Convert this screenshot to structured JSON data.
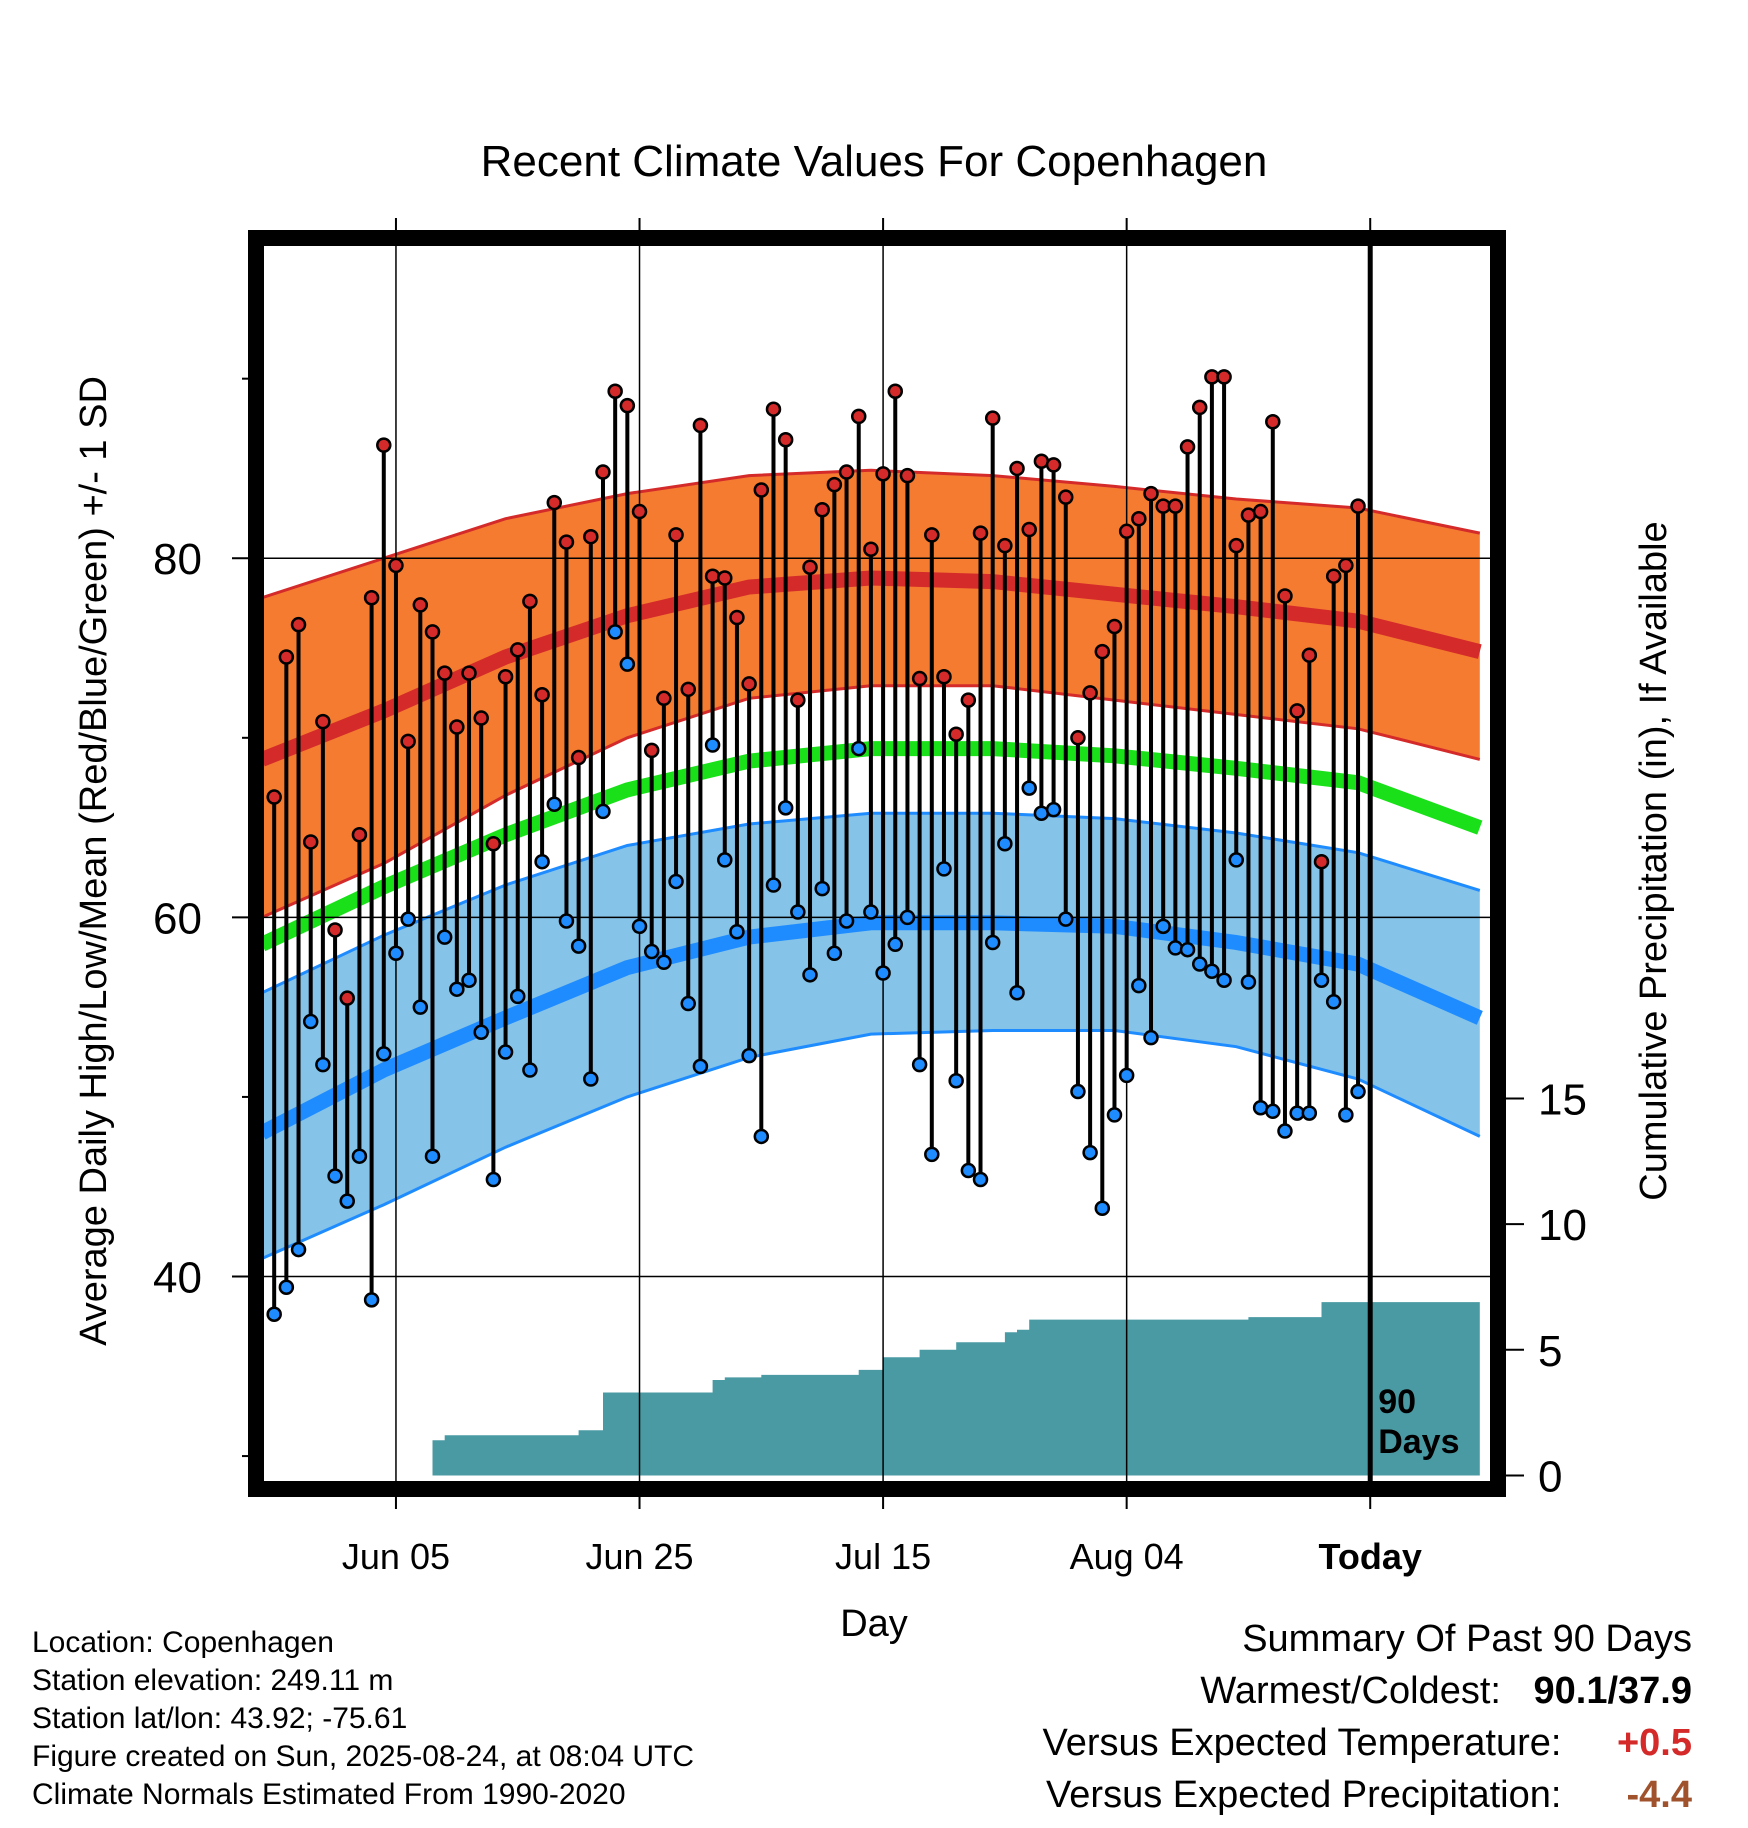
{
  "chart_data": {
    "type": "line",
    "title": "Recent Climate Values For Copenhagen",
    "xlabel": "Day",
    "ylabel": "Average Daily High/Low/Mean (Red/Blue/Green) +/- 1 SD",
    "y2label": "Cumulative Precipitation (in), If Available",
    "x_ticks": [
      "Jun 05",
      "Jun 25",
      "Jul 15",
      "Aug 04",
      "Today"
    ],
    "x_tick_days": [
      10,
      30,
      50,
      70,
      90
    ],
    "xlim": [
      -1,
      100
    ],
    "ylim": [
      28.5,
      97.5
    ],
    "y_ticks": [
      40,
      60,
      80
    ],
    "y2lim": [
      -0.3,
      49
    ],
    "y2_ticks": [
      0,
      5,
      10,
      15
    ],
    "grid": true,
    "today_marker_label": "90\nDays",
    "today_day": 90,
    "colors": {
      "high_band": "#f47b30",
      "high_line": "#d42a2a",
      "low_band": "#85c3e8",
      "low_line": "#1e8cff",
      "mean_line": "#19e019",
      "precip": "#4a9aa3",
      "high_point": "#d42a2a",
      "low_point": "#1e8cff"
    },
    "normals": {
      "x": [
        -1,
        9,
        19,
        29,
        39,
        49,
        59,
        69,
        79,
        89,
        99
      ],
      "high_mean": [
        68.8,
        71.5,
        74.5,
        76.8,
        78.4,
        78.9,
        78.7,
        78.0,
        77.3,
        76.5,
        74.8
      ],
      "high_upper": [
        77.8,
        80.0,
        82.2,
        83.6,
        84.6,
        84.9,
        84.6,
        84.0,
        83.3,
        82.8,
        81.4
      ],
      "high_lower": [
        60.0,
        63.0,
        66.8,
        70.0,
        72.2,
        72.9,
        72.9,
        72.1,
        71.3,
        70.5,
        68.8
      ],
      "mean": [
        58.5,
        61.7,
        64.6,
        67.1,
        68.7,
        69.4,
        69.4,
        69.0,
        68.3,
        67.5,
        65.0
      ],
      "low_mean": [
        48.0,
        51.5,
        54.4,
        57.2,
        58.9,
        59.7,
        59.7,
        59.5,
        58.6,
        57.4,
        54.4
      ],
      "low_upper": [
        55.8,
        59.0,
        61.8,
        64.0,
        65.2,
        65.8,
        65.8,
        65.5,
        64.7,
        63.6,
        61.5
      ],
      "low_lower": [
        41.0,
        44.0,
        47.2,
        50.0,
        52.2,
        53.5,
        53.7,
        53.7,
        52.8,
        51.0,
        47.8
      ]
    },
    "observations": {
      "high": [
        66.7,
        74.5,
        76.3,
        64.2,
        70.9,
        59.3,
        55.5,
        64.6,
        77.8,
        86.3,
        79.6,
        69.8,
        77.4,
        75.9,
        73.6,
        70.6,
        73.6,
        71.1,
        64.1,
        73.4,
        74.9,
        77.6,
        72.4,
        83.1,
        80.9,
        68.9,
        81.2,
        84.8,
        89.3,
        88.5,
        82.6,
        69.3,
        72.2,
        81.3,
        72.7,
        87.4,
        79.0,
        78.9,
        76.7,
        73.0,
        83.8,
        88.3,
        86.6,
        72.1,
        79.5,
        82.7,
        84.1,
        84.8,
        87.9,
        80.5,
        84.7,
        89.3,
        84.6,
        73.3,
        81.3,
        73.4,
        70.2,
        72.1,
        81.4,
        87.8,
        80.7,
        85.0,
        81.6,
        85.4,
        85.2,
        83.4,
        70.0,
        72.5,
        74.8,
        76.2,
        81.5,
        82.2,
        83.6,
        82.9,
        82.9,
        86.2,
        88.4,
        90.1,
        90.1,
        80.7,
        82.4,
        82.6,
        87.6,
        77.9,
        71.5,
        74.6,
        63.1,
        79.0,
        79.6,
        82.9
      ],
      "low": [
        37.9,
        39.4,
        41.5,
        54.2,
        51.8,
        45.6,
        44.2,
        46.7,
        38.7,
        52.4,
        58.0,
        59.9,
        55.0,
        46.7,
        58.9,
        56.0,
        56.5,
        53.6,
        45.4,
        52.5,
        55.6,
        51.5,
        63.1,
        66.3,
        59.8,
        58.4,
        51.0,
        65.9,
        75.9,
        74.1,
        59.5,
        58.1,
        57.5,
        62.0,
        55.2,
        51.7,
        69.6,
        63.2,
        59.2,
        52.3,
        47.8,
        61.8,
        66.1,
        60.3,
        56.8,
        61.6,
        58.0,
        59.8,
        69.4,
        60.3,
        56.9,
        58.5,
        60.0,
        51.8,
        46.8,
        62.7,
        50.9,
        45.9,
        45.4,
        58.6,
        64.1,
        55.8,
        67.2,
        65.8,
        66.0,
        59.9,
        50.3,
        46.9,
        43.8,
        49.0,
        51.2,
        56.2,
        53.3,
        59.5,
        58.3,
        58.2,
        57.4,
        57.0,
        56.5,
        63.2,
        56.4,
        49.4,
        49.2,
        48.1,
        49.1,
        49.1,
        56.5,
        55.3,
        49.0,
        50.3
      ]
    },
    "precipitation": {
      "steps": [
        [
          0,
          0
        ],
        [
          12,
          0
        ],
        [
          13,
          1.4
        ],
        [
          14,
          1.6
        ],
        [
          24,
          1.6
        ],
        [
          25,
          1.8
        ],
        [
          26,
          1.8
        ],
        [
          27,
          3.3
        ],
        [
          35,
          3.3
        ],
        [
          36,
          3.8
        ],
        [
          37,
          3.9
        ],
        [
          39,
          3.9
        ],
        [
          40,
          4.0
        ],
        [
          47,
          4.0
        ],
        [
          48,
          4.2
        ],
        [
          49,
          4.2
        ],
        [
          50,
          4.7
        ],
        [
          52,
          4.7
        ],
        [
          53,
          5.0
        ],
        [
          55,
          5.0
        ],
        [
          56,
          5.3
        ],
        [
          59,
          5.3
        ],
        [
          60,
          5.7
        ],
        [
          61,
          5.8
        ],
        [
          62,
          6.2
        ],
        [
          79,
          6.2
        ],
        [
          80,
          6.3
        ],
        [
          85,
          6.3
        ],
        [
          86,
          6.9
        ],
        [
          99,
          6.9
        ]
      ]
    }
  },
  "info": {
    "location": "Location: Copenhagen",
    "elevation": "Station elevation: 249.11 m",
    "latlon": "Station lat/lon: 43.92; -75.61",
    "created": "Figure created on Sun, 2025-08-24, at 08:04 UTC",
    "normals": "Climate Normals Estimated From 1990-2020"
  },
  "summary": {
    "heading": "Summary Of Past 90 Days",
    "warmest_label": "Warmest/Coldest:",
    "warmest_value": "90.1/37.9",
    "temp_label": "Versus Expected Temperature:",
    "temp_value": "+0.5",
    "temp_color": "#d42a2a",
    "precip_label": "Versus Expected Precipitation:",
    "precip_value": "-4.4",
    "precip_color": "#a0522d"
  }
}
